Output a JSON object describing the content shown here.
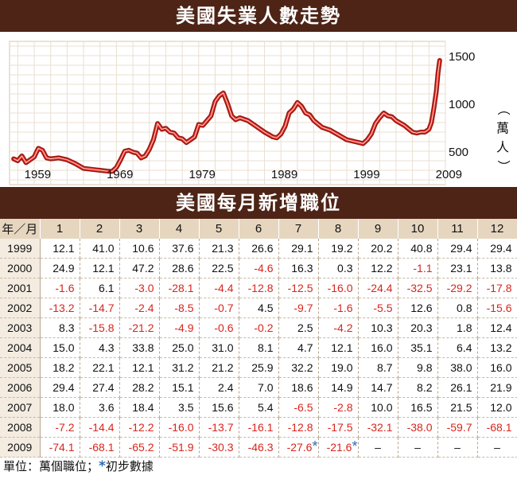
{
  "chart_title": "美國失業人數走勢",
  "table_title": "美國每月新增職位",
  "chart_data": {
    "type": "line",
    "x_ticks": [
      "1959",
      "1969",
      "1979",
      "1989",
      "1999",
      "2009"
    ],
    "y_ticks": [
      500,
      1000,
      1500
    ],
    "ylabel": "（萬人）",
    "xlim": [
      1957,
      2010
    ],
    "ylim": [
      150,
      1650
    ],
    "x": [
      1957.5,
      1958,
      1958.5,
      1959,
      1959.5,
      1960,
      1960.5,
      1961,
      1961.5,
      1962,
      1963,
      1964,
      1965,
      1966,
      1967,
      1968,
      1969,
      1969.5,
      1970,
      1970.5,
      1971,
      1971.5,
      1972,
      1972.5,
      1973,
      1973.5,
      1974,
      1974.5,
      1975,
      1975.5,
      1976,
      1976.5,
      1977,
      1977.5,
      1978,
      1978.5,
      1979,
      1979.5,
      1980,
      1980.5,
      1981,
      1981.5,
      1982,
      1982.5,
      1983,
      1983.5,
      1984,
      1984.5,
      1985,
      1986,
      1987,
      1988,
      1989,
      1989.5,
      1990,
      1990.5,
      1991,
      1991.5,
      1992,
      1992.5,
      1993,
      1993.5,
      1994,
      1995,
      1996,
      1997,
      1998,
      1999,
      2000,
      2000.5,
      2001,
      2001.5,
      2002,
      2002.5,
      2003,
      2003.5,
      2004,
      2005,
      2006,
      2006.5,
      2007,
      2007.5,
      2008,
      2008.3,
      2008.6,
      2008.9,
      2009.1,
      2009.3
    ],
    "values": [
      420,
      400,
      450,
      380,
      410,
      440,
      530,
      510,
      430,
      420,
      430,
      410,
      370,
      320,
      310,
      300,
      290,
      290,
      330,
      410,
      500,
      510,
      490,
      480,
      430,
      450,
      520,
      620,
      790,
      730,
      740,
      700,
      690,
      640,
      630,
      590,
      620,
      650,
      780,
      770,
      820,
      870,
      1020,
      1080,
      1110,
      1000,
      870,
      830,
      850,
      820,
      760,
      700,
      650,
      640,
      680,
      760,
      900,
      940,
      1010,
      970,
      900,
      880,
      820,
      750,
      720,
      670,
      620,
      600,
      580,
      620,
      680,
      790,
      850,
      900,
      870,
      860,
      820,
      770,
      700,
      690,
      700,
      700,
      730,
      800,
      950,
      1130,
      1320,
      1450
    ]
  },
  "table": {
    "corner_label": "年／月",
    "months": [
      "1",
      "2",
      "3",
      "4",
      "5",
      "6",
      "7",
      "8",
      "9",
      "10",
      "11",
      "12"
    ],
    "rows": [
      {
        "year": "1999",
        "cells": [
          {
            "v": "12.1"
          },
          {
            "v": "41.0"
          },
          {
            "v": "10.6"
          },
          {
            "v": "37.6"
          },
          {
            "v": "21.3"
          },
          {
            "v": "26.6"
          },
          {
            "v": "29.1"
          },
          {
            "v": "19.2"
          },
          {
            "v": "20.2"
          },
          {
            "v": "40.8"
          },
          {
            "v": "29.4"
          },
          {
            "v": "29.4"
          }
        ]
      },
      {
        "year": "2000",
        "cells": [
          {
            "v": "24.9"
          },
          {
            "v": "12.1"
          },
          {
            "v": "47.2"
          },
          {
            "v": "28.6"
          },
          {
            "v": "22.5"
          },
          {
            "v": "-4.6"
          },
          {
            "v": "16.3"
          },
          {
            "v": "0.3"
          },
          {
            "v": "12.2"
          },
          {
            "v": "-1.1"
          },
          {
            "v": "23.1"
          },
          {
            "v": "13.8"
          }
        ]
      },
      {
        "year": "2001",
        "cells": [
          {
            "v": "-1.6"
          },
          {
            "v": "6.1"
          },
          {
            "v": "-3.0"
          },
          {
            "v": "-28.1"
          },
          {
            "v": "-4.4"
          },
          {
            "v": "-12.8"
          },
          {
            "v": "-12.5"
          },
          {
            "v": "-16.0"
          },
          {
            "v": "-24.4"
          },
          {
            "v": "-32.5"
          },
          {
            "v": "-29.2"
          },
          {
            "v": "-17.8"
          }
        ]
      },
      {
        "year": "2002",
        "cells": [
          {
            "v": "-13.2"
          },
          {
            "v": "-14.7"
          },
          {
            "v": "-2.4"
          },
          {
            "v": "-8.5"
          },
          {
            "v": "-0.7"
          },
          {
            "v": "4.5"
          },
          {
            "v": "-9.7"
          },
          {
            "v": "-1.6"
          },
          {
            "v": "-5.5"
          },
          {
            "v": "12.6"
          },
          {
            "v": "0.8"
          },
          {
            "v": "-15.6"
          }
        ]
      },
      {
        "year": "2003",
        "cells": [
          {
            "v": "8.3"
          },
          {
            "v": "-15.8"
          },
          {
            "v": "-21.2"
          },
          {
            "v": "-4.9"
          },
          {
            "v": "-0.6"
          },
          {
            "v": "-0.2"
          },
          {
            "v": "2.5"
          },
          {
            "v": "-4.2"
          },
          {
            "v": "10.3"
          },
          {
            "v": "20.3"
          },
          {
            "v": "1.8"
          },
          {
            "v": "12.4"
          }
        ]
      },
      {
        "year": "2004",
        "cells": [
          {
            "v": "15.0"
          },
          {
            "v": "4.3"
          },
          {
            "v": "33.8"
          },
          {
            "v": "25.0"
          },
          {
            "v": "31.0"
          },
          {
            "v": "8.1"
          },
          {
            "v": "4.7"
          },
          {
            "v": "12.1"
          },
          {
            "v": "16.0"
          },
          {
            "v": "35.1"
          },
          {
            "v": "6.4"
          },
          {
            "v": "13.2"
          }
        ]
      },
      {
        "year": "2005",
        "cells": [
          {
            "v": "18.2"
          },
          {
            "v": "22.1"
          },
          {
            "v": "12.1"
          },
          {
            "v": "31.2"
          },
          {
            "v": "21.2"
          },
          {
            "v": "25.9"
          },
          {
            "v": "32.2"
          },
          {
            "v": "19.0"
          },
          {
            "v": "8.7"
          },
          {
            "v": "9.8"
          },
          {
            "v": "38.0"
          },
          {
            "v": "16.0"
          }
        ]
      },
      {
        "year": "2006",
        "cells": [
          {
            "v": "29.4"
          },
          {
            "v": "27.4"
          },
          {
            "v": "28.2"
          },
          {
            "v": "15.1"
          },
          {
            "v": "2.4"
          },
          {
            "v": "7.0"
          },
          {
            "v": "18.6"
          },
          {
            "v": "14.9"
          },
          {
            "v": "14.7"
          },
          {
            "v": "8.2"
          },
          {
            "v": "26.1"
          },
          {
            "v": "21.9"
          }
        ]
      },
      {
        "year": "2007",
        "cells": [
          {
            "v": "18.0"
          },
          {
            "v": "3.6"
          },
          {
            "v": "18.4"
          },
          {
            "v": "3.5"
          },
          {
            "v": "15.6"
          },
          {
            "v": "5.4"
          },
          {
            "v": "-6.5"
          },
          {
            "v": "-2.8"
          },
          {
            "v": "10.0"
          },
          {
            "v": "16.5"
          },
          {
            "v": "21.5"
          },
          {
            "v": "12.0"
          }
        ]
      },
      {
        "year": "2008",
        "cells": [
          {
            "v": "-7.2"
          },
          {
            "v": "-14.4"
          },
          {
            "v": "-12.2"
          },
          {
            "v": "-16.0"
          },
          {
            "v": "-13.7"
          },
          {
            "v": "-16.1"
          },
          {
            "v": "-12.8"
          },
          {
            "v": "-17.5"
          },
          {
            "v": "-32.1"
          },
          {
            "v": "-38.0"
          },
          {
            "v": "-59.7"
          },
          {
            "v": "-68.1"
          }
        ]
      },
      {
        "year": "2009",
        "cells": [
          {
            "v": "-74.1"
          },
          {
            "v": "-68.1"
          },
          {
            "v": "-65.2"
          },
          {
            "v": "-51.9"
          },
          {
            "v": "-30.3"
          },
          {
            "v": "-46.3"
          },
          {
            "v": "-27.6",
            "star": "*"
          },
          {
            "v": "-21.6",
            "star": "*"
          },
          {
            "v": "–"
          },
          {
            "v": "–"
          },
          {
            "v": "–"
          },
          {
            "v": "–"
          }
        ]
      }
    ]
  },
  "footer": {
    "unit_text": "單位：萬個職位；",
    "asterisk": "*",
    "note_text": "初步數據"
  },
  "colors": {
    "banner": "#4d2416",
    "header_bg": "#e6d6c0",
    "line_red": "#e0231c",
    "negative": "#d9251c",
    "star_blue": "#2b6fb5"
  }
}
